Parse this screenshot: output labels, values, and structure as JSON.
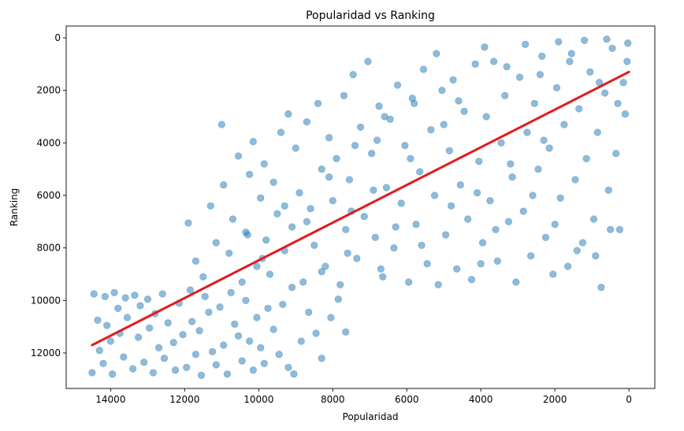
{
  "chart_data": {
    "type": "scatter",
    "title": "Popularidad vs Ranking",
    "xlabel": "Popularidad",
    "ylabel": "Ranking",
    "x_inverted": true,
    "y_inverted": true,
    "xlim": [
      15200,
      -700
    ],
    "ylim": [
      13350,
      -450
    ],
    "xticks": [
      14000,
      12000,
      10000,
      8000,
      6000,
      4000,
      2000,
      0
    ],
    "yticks": [
      0,
      2000,
      4000,
      6000,
      8000,
      10000,
      12000
    ],
    "xtick_labels": [
      "14000",
      "12000",
      "10000",
      "8000",
      "6000",
      "4000",
      "2000",
      "0"
    ],
    "ytick_labels": [
      "0",
      "2000",
      "4000",
      "6000",
      "8000",
      "10000",
      "12000"
    ],
    "grid": false,
    "point_color": "#1f77b4",
    "point_alpha": 0.5,
    "trend_color": "#e31a1c",
    "series": [
      {
        "points": [
          [
            14500,
            12750
          ],
          [
            14450,
            9750
          ],
          [
            14350,
            10750
          ],
          [
            14300,
            11900
          ],
          [
            14200,
            12400
          ],
          [
            14150,
            9850
          ],
          [
            14100,
            10950
          ],
          [
            14000,
            11550
          ],
          [
            13950,
            12800
          ],
          [
            13900,
            9700
          ],
          [
            13800,
            10300
          ],
          [
            13750,
            11250
          ],
          [
            13650,
            12150
          ],
          [
            13600,
            9900
          ],
          [
            13550,
            10650
          ],
          [
            13400,
            12600
          ],
          [
            13350,
            9800
          ],
          [
            13250,
            11400
          ],
          [
            13200,
            10200
          ],
          [
            13100,
            12350
          ],
          [
            13000,
            9950
          ],
          [
            12950,
            11050
          ],
          [
            12850,
            12750
          ],
          [
            12800,
            10500
          ],
          [
            12700,
            11800
          ],
          [
            12600,
            9750
          ],
          [
            12550,
            12200
          ],
          [
            12450,
            10850
          ],
          [
            12300,
            11600
          ],
          [
            12250,
            12650
          ],
          [
            12150,
            10100
          ],
          [
            12050,
            11300
          ],
          [
            11950,
            12550
          ],
          [
            11850,
            9600
          ],
          [
            11800,
            10800
          ],
          [
            11700,
            12050
          ],
          [
            11600,
            11150
          ],
          [
            11550,
            12850
          ],
          [
            11450,
            9850
          ],
          [
            11350,
            10450
          ],
          [
            11250,
            11950
          ],
          [
            11150,
            12450
          ],
          [
            11050,
            10250
          ],
          [
            10950,
            11700
          ],
          [
            10850,
            12800
          ],
          [
            10750,
            9700
          ],
          [
            10650,
            10900
          ],
          [
            10550,
            11350
          ],
          [
            10450,
            12300
          ],
          [
            10350,
            10000
          ],
          [
            10250,
            11550
          ],
          [
            10150,
            12650
          ],
          [
            10050,
            10650
          ],
          [
            9950,
            11800
          ],
          [
            9850,
            12400
          ],
          [
            9750,
            10300
          ],
          [
            9600,
            11100
          ],
          [
            9450,
            12050
          ],
          [
            9350,
            10150
          ],
          [
            9200,
            12550
          ],
          [
            9050,
            12800
          ],
          [
            8850,
            11550
          ],
          [
            8650,
            10450
          ],
          [
            8450,
            11250
          ],
          [
            8300,
            12200
          ],
          [
            8050,
            10650
          ],
          [
            7850,
            9950
          ],
          [
            7650,
            11200
          ],
          [
            11900,
            7050
          ],
          [
            11700,
            8500
          ],
          [
            11500,
            9100
          ],
          [
            11300,
            6400
          ],
          [
            11150,
            7800
          ],
          [
            11000,
            3300
          ],
          [
            10950,
            5600
          ],
          [
            10800,
            8200
          ],
          [
            10700,
            6900
          ],
          [
            10550,
            4500
          ],
          [
            10450,
            9300
          ],
          [
            10350,
            7400
          ],
          [
            10250,
            5200
          ],
          [
            10150,
            3950
          ],
          [
            10050,
            8700
          ],
          [
            9950,
            6100
          ],
          [
            9850,
            4800
          ],
          [
            9800,
            7700
          ],
          [
            9700,
            9000
          ],
          [
            9600,
            5500
          ],
          [
            9500,
            6700
          ],
          [
            9400,
            3600
          ],
          [
            9300,
            8100
          ],
          [
            9200,
            2900
          ],
          [
            9100,
            7200
          ],
          [
            9000,
            4200
          ],
          [
            8900,
            5900
          ],
          [
            8800,
            9300
          ],
          [
            8700,
            3200
          ],
          [
            8600,
            6500
          ],
          [
            8500,
            7900
          ],
          [
            8400,
            2500
          ],
          [
            8300,
            5000
          ],
          [
            8200,
            8700
          ],
          [
            8100,
            3800
          ],
          [
            8000,
            6200
          ],
          [
            7900,
            4600
          ],
          [
            7800,
            9400
          ],
          [
            7700,
            2200
          ],
          [
            7650,
            7300
          ],
          [
            7550,
            5400
          ],
          [
            7450,
            1400
          ],
          [
            7350,
            8400
          ],
          [
            7250,
            3400
          ],
          [
            7150,
            6800
          ],
          [
            7050,
            900
          ],
          [
            6950,
            4400
          ],
          [
            6850,
            7600
          ],
          [
            6750,
            2600
          ],
          [
            6650,
            9100
          ],
          [
            6550,
            5700
          ],
          [
            6450,
            3100
          ],
          [
            6350,
            8000
          ],
          [
            6250,
            1800
          ],
          [
            6150,
            6300
          ],
          [
            6050,
            4100
          ],
          [
            5950,
            9300
          ],
          [
            5850,
            2300
          ],
          [
            5750,
            7100
          ],
          [
            5650,
            5100
          ],
          [
            5550,
            1200
          ],
          [
            5450,
            8600
          ],
          [
            5350,
            3500
          ],
          [
            5250,
            6000
          ],
          [
            5150,
            9400
          ],
          [
            5050,
            2000
          ],
          [
            4950,
            7500
          ],
          [
            4850,
            4300
          ],
          [
            4750,
            1600
          ],
          [
            4650,
            8800
          ],
          [
            4550,
            5600
          ],
          [
            4450,
            2800
          ],
          [
            4350,
            6900
          ],
          [
            4250,
            9200
          ],
          [
            4150,
            1000
          ],
          [
            4050,
            4700
          ],
          [
            3950,
            7800
          ],
          [
            3850,
            3000
          ],
          [
            3750,
            6200
          ],
          [
            3650,
            900
          ],
          [
            3550,
            8500
          ],
          [
            3450,
            4000
          ],
          [
            3350,
            2200
          ],
          [
            3250,
            7000
          ],
          [
            3150,
            5300
          ],
          [
            3050,
            9300
          ],
          [
            2950,
            1500
          ],
          [
            2850,
            6600
          ],
          [
            2750,
            3600
          ],
          [
            2650,
            8300
          ],
          [
            2550,
            2500
          ],
          [
            2450,
            5000
          ],
          [
            2350,
            700
          ],
          [
            2250,
            7600
          ],
          [
            2150,
            4200
          ],
          [
            2050,
            9000
          ],
          [
            1950,
            1900
          ],
          [
            1850,
            6100
          ],
          [
            1750,
            3300
          ],
          [
            1650,
            8700
          ],
          [
            1550,
            600
          ],
          [
            1450,
            5400
          ],
          [
            1350,
            2700
          ],
          [
            1250,
            7800
          ],
          [
            1150,
            4600
          ],
          [
            1050,
            1300
          ],
          [
            950,
            6900
          ],
          [
            850,
            3600
          ],
          [
            750,
            9500
          ],
          [
            650,
            2100
          ],
          [
            550,
            5800
          ],
          [
            450,
            400
          ],
          [
            350,
            4400
          ],
          [
            250,
            7300
          ],
          [
            150,
            1700
          ],
          [
            100,
            2900
          ],
          [
            50,
            900
          ],
          [
            30,
            200
          ],
          [
            5200,
            600
          ],
          [
            3900,
            350
          ],
          [
            2800,
            250
          ],
          [
            1900,
            150
          ],
          [
            1200,
            100
          ],
          [
            600,
            50
          ],
          [
            4600,
            2400
          ],
          [
            3300,
            1100
          ],
          [
            2400,
            1400
          ],
          [
            1600,
            900
          ],
          [
            800,
            1700
          ],
          [
            300,
            2500
          ],
          [
            6800,
            3900
          ],
          [
            5900,
            4600
          ],
          [
            5000,
            3300
          ],
          [
            4100,
            5900
          ],
          [
            3200,
            4800
          ],
          [
            2300,
            3900
          ],
          [
            9300,
            6400
          ],
          [
            8700,
            7000
          ],
          [
            8100,
            5300
          ],
          [
            7500,
            6600
          ],
          [
            6900,
            5800
          ],
          [
            6300,
            7200
          ],
          [
            10300,
            7500
          ],
          [
            9900,
            8400
          ],
          [
            9100,
            9500
          ],
          [
            8300,
            8900
          ],
          [
            7600,
            8200
          ],
          [
            6700,
            8800
          ],
          [
            7400,
            4100
          ],
          [
            6600,
            3000
          ],
          [
            5800,
            2500
          ],
          [
            5600,
            7900
          ],
          [
            4800,
            6400
          ],
          [
            4000,
            8600
          ],
          [
            3600,
            7300
          ],
          [
            2600,
            6000
          ],
          [
            2000,
            7100
          ],
          [
            1400,
            8100
          ],
          [
            900,
            8300
          ],
          [
            500,
            7300
          ]
        ]
      }
    ],
    "trend_line": {
      "x": [
        14500,
        0
      ],
      "y": [
        11700,
        1300
      ]
    }
  }
}
